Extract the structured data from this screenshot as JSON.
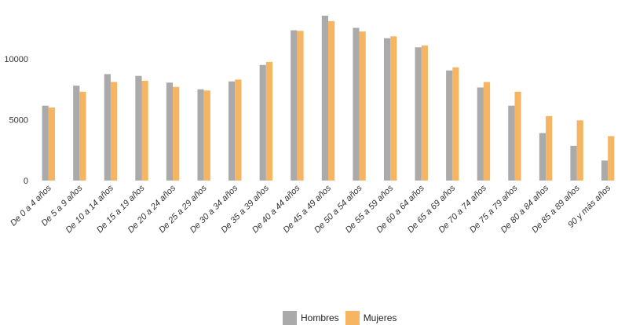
{
  "chart_data": {
    "type": "bar",
    "categories": [
      "De 0 a 4 años",
      "De 5 a 9 años",
      "De 10 a 14 años",
      "De 15 a 19 años",
      "De 20 a 24 años",
      "De 25 a 29 años",
      "De 30 a 34 años",
      "De 35 a 39 años",
      "De 40 a 44 años",
      "De 45 a 49 años",
      "De 50 a 54 años",
      "De 55 a 59 años",
      "De 60 a 64 años",
      "De 65 a 69 años",
      "De 70 a 74 años",
      "De 75 a 79 años",
      "De 80 a 84 años",
      "De 85 a 89 años",
      "90 y más años"
    ],
    "series": [
      {
        "name": "Hombres",
        "color": "#aaaaaa",
        "values": [
          6150,
          7800,
          8750,
          8600,
          8050,
          7500,
          8150,
          9500,
          12350,
          13550,
          12550,
          11700,
          10950,
          9050,
          7650,
          6150,
          3900,
          2850,
          1650
        ]
      },
      {
        "name": "Mujeres",
        "color": "#f5b563",
        "values": [
          6000,
          7300,
          8100,
          8200,
          7700,
          7400,
          8300,
          9750,
          12300,
          13100,
          12250,
          11850,
          11100,
          9300,
          8100,
          7300,
          5300,
          4950,
          3650
        ]
      }
    ],
    "yticks": [
      0,
      5000,
      10000
    ],
    "ylim": [
      0,
      14000
    ],
    "title": "",
    "xlabel": "",
    "ylabel": "",
    "grid": false,
    "legend_position": "bottom"
  }
}
